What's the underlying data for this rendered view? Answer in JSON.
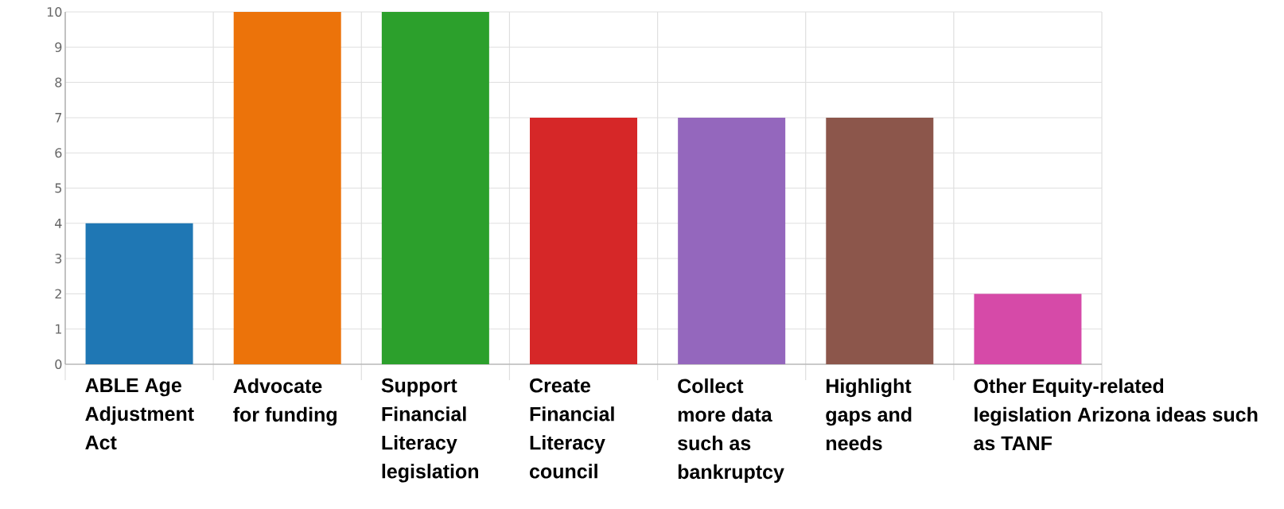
{
  "chart_data": {
    "type": "bar",
    "categories": [
      "ABLE Age Adjustment Act",
      "Advocate for funding",
      "Support Financial Literacy legislation",
      "Create Financial Literacy council",
      "Collect more data such as bankruptcy",
      "Highlight gaps and needs",
      "Other Equity-related legislation Arizona ideas such as TANF"
    ],
    "values": [
      4,
      10,
      10,
      7,
      7,
      7,
      2
    ],
    "colors": [
      "#1f77b4",
      "#ec730a",
      "#2ca02c",
      "#d62728",
      "#9467bd",
      "#8c564b",
      "#d64aa8"
    ],
    "ylim": [
      0,
      10
    ],
    "yticks": [
      0,
      1,
      2,
      3,
      4,
      5,
      6,
      7,
      8,
      9,
      10
    ],
    "grid": true
  }
}
